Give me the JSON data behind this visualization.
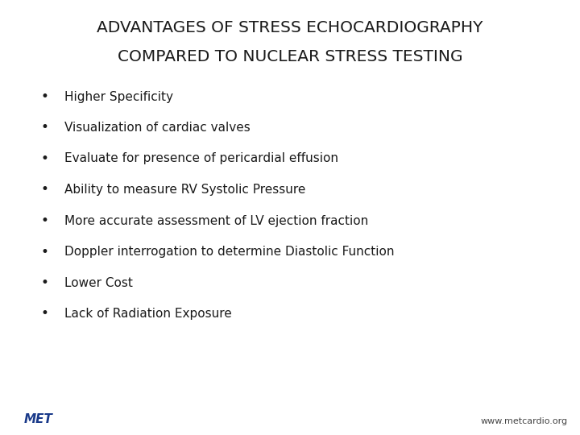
{
  "title_line1": "ADVANTAGES OF STRESS ECHOCARDIOGRAPHY",
  "title_line2": "COMPARED TO NUCLEAR STRESS TESTING",
  "bullet_points": [
    "Higher Specificity",
    "Visualization of cardiac valves",
    "Evaluate for presence of pericardial effusion",
    "Ability to measure RV Systolic Pressure",
    "More accurate assessment of LV ejection fraction",
    "Doppler interrogation to determine Diastolic Function",
    "Lower Cost",
    "Lack of Radiation Exposure"
  ],
  "background_color": "#ffffff",
  "title_color": "#1a1a1a",
  "bullet_color": "#1a1a1a",
  "bullet_dot_color": "#1a1a1a",
  "title_fontsize": 14.5,
  "bullet_fontsize": 11,
  "website_text": "www.metcardio.org",
  "website_color": "#444444",
  "website_fontsize": 8,
  "met_text": "MET",
  "met_color": "#1a3a8a",
  "met_fontsize": 11
}
